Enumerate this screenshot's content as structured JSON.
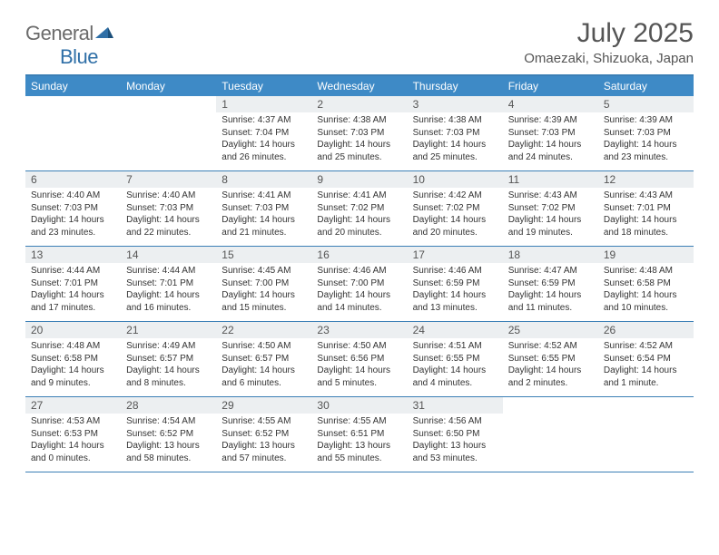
{
  "logo": {
    "part1": "General",
    "part2": "Blue"
  },
  "title": "July 2025",
  "location": "Omaezaki, Shizuoka, Japan",
  "colors": {
    "header_bg": "#3e8ac6",
    "header_text": "#ffffff",
    "rule": "#3b7fb6",
    "daynum_bg": "#eceff1",
    "text": "#333333",
    "title_color": "#555555"
  },
  "dow": [
    "Sunday",
    "Monday",
    "Tuesday",
    "Wednesday",
    "Thursday",
    "Friday",
    "Saturday"
  ],
  "weeks": [
    [
      null,
      null,
      {
        "n": "1",
        "sr": "4:37 AM",
        "ss": "7:04 PM",
        "dl": "14 hours and 26 minutes."
      },
      {
        "n": "2",
        "sr": "4:38 AM",
        "ss": "7:03 PM",
        "dl": "14 hours and 25 minutes."
      },
      {
        "n": "3",
        "sr": "4:38 AM",
        "ss": "7:03 PM",
        "dl": "14 hours and 25 minutes."
      },
      {
        "n": "4",
        "sr": "4:39 AM",
        "ss": "7:03 PM",
        "dl": "14 hours and 24 minutes."
      },
      {
        "n": "5",
        "sr": "4:39 AM",
        "ss": "7:03 PM",
        "dl": "14 hours and 23 minutes."
      }
    ],
    [
      {
        "n": "6",
        "sr": "4:40 AM",
        "ss": "7:03 PM",
        "dl": "14 hours and 23 minutes."
      },
      {
        "n": "7",
        "sr": "4:40 AM",
        "ss": "7:03 PM",
        "dl": "14 hours and 22 minutes."
      },
      {
        "n": "8",
        "sr": "4:41 AM",
        "ss": "7:03 PM",
        "dl": "14 hours and 21 minutes."
      },
      {
        "n": "9",
        "sr": "4:41 AM",
        "ss": "7:02 PM",
        "dl": "14 hours and 20 minutes."
      },
      {
        "n": "10",
        "sr": "4:42 AM",
        "ss": "7:02 PM",
        "dl": "14 hours and 20 minutes."
      },
      {
        "n": "11",
        "sr": "4:43 AM",
        "ss": "7:02 PM",
        "dl": "14 hours and 19 minutes."
      },
      {
        "n": "12",
        "sr": "4:43 AM",
        "ss": "7:01 PM",
        "dl": "14 hours and 18 minutes."
      }
    ],
    [
      {
        "n": "13",
        "sr": "4:44 AM",
        "ss": "7:01 PM",
        "dl": "14 hours and 17 minutes."
      },
      {
        "n": "14",
        "sr": "4:44 AM",
        "ss": "7:01 PM",
        "dl": "14 hours and 16 minutes."
      },
      {
        "n": "15",
        "sr": "4:45 AM",
        "ss": "7:00 PM",
        "dl": "14 hours and 15 minutes."
      },
      {
        "n": "16",
        "sr": "4:46 AM",
        "ss": "7:00 PM",
        "dl": "14 hours and 14 minutes."
      },
      {
        "n": "17",
        "sr": "4:46 AM",
        "ss": "6:59 PM",
        "dl": "14 hours and 13 minutes."
      },
      {
        "n": "18",
        "sr": "4:47 AM",
        "ss": "6:59 PM",
        "dl": "14 hours and 11 minutes."
      },
      {
        "n": "19",
        "sr": "4:48 AM",
        "ss": "6:58 PM",
        "dl": "14 hours and 10 minutes."
      }
    ],
    [
      {
        "n": "20",
        "sr": "4:48 AM",
        "ss": "6:58 PM",
        "dl": "14 hours and 9 minutes."
      },
      {
        "n": "21",
        "sr": "4:49 AM",
        "ss": "6:57 PM",
        "dl": "14 hours and 8 minutes."
      },
      {
        "n": "22",
        "sr": "4:50 AM",
        "ss": "6:57 PM",
        "dl": "14 hours and 6 minutes."
      },
      {
        "n": "23",
        "sr": "4:50 AM",
        "ss": "6:56 PM",
        "dl": "14 hours and 5 minutes."
      },
      {
        "n": "24",
        "sr": "4:51 AM",
        "ss": "6:55 PM",
        "dl": "14 hours and 4 minutes."
      },
      {
        "n": "25",
        "sr": "4:52 AM",
        "ss": "6:55 PM",
        "dl": "14 hours and 2 minutes."
      },
      {
        "n": "26",
        "sr": "4:52 AM",
        "ss": "6:54 PM",
        "dl": "14 hours and 1 minute."
      }
    ],
    [
      {
        "n": "27",
        "sr": "4:53 AM",
        "ss": "6:53 PM",
        "dl": "14 hours and 0 minutes."
      },
      {
        "n": "28",
        "sr": "4:54 AM",
        "ss": "6:52 PM",
        "dl": "13 hours and 58 minutes."
      },
      {
        "n": "29",
        "sr": "4:55 AM",
        "ss": "6:52 PM",
        "dl": "13 hours and 57 minutes."
      },
      {
        "n": "30",
        "sr": "4:55 AM",
        "ss": "6:51 PM",
        "dl": "13 hours and 55 minutes."
      },
      {
        "n": "31",
        "sr": "4:56 AM",
        "ss": "6:50 PM",
        "dl": "13 hours and 53 minutes."
      },
      null,
      null
    ]
  ],
  "labels": {
    "sunrise": "Sunrise:",
    "sunset": "Sunset:",
    "daylight": "Daylight:"
  }
}
